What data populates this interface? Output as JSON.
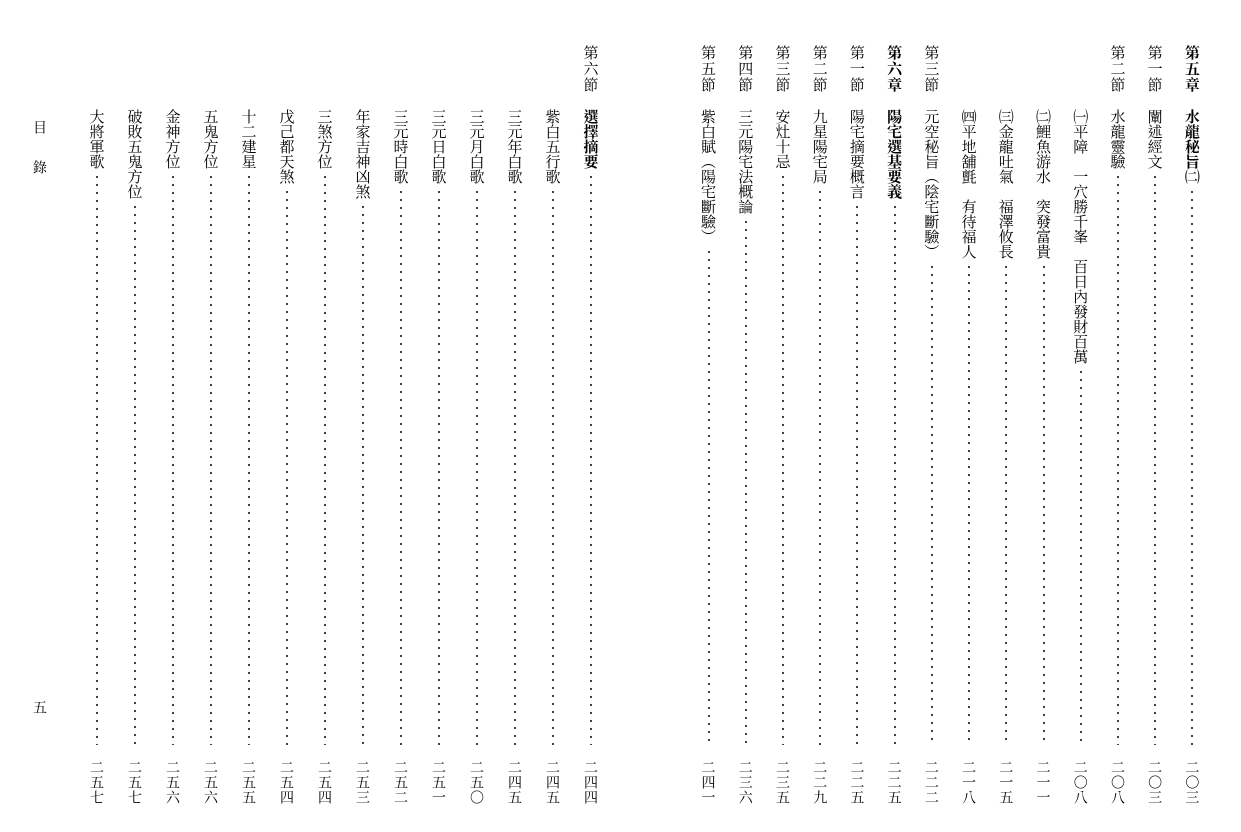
{
  "side_label_top": "目　錄",
  "side_label_bottom": "五",
  "right_page": {
    "entries": [
      {
        "header": "第五章",
        "header_bold": true,
        "title": "水龍秘旨㈡",
        "title_bold": true,
        "page": "二〇三"
      },
      {
        "header": "第一節",
        "title": "闡述經文",
        "page": "二〇三"
      },
      {
        "header": "第二節",
        "title": "水龍靈驗",
        "page": "二〇八"
      },
      {
        "header": "",
        "title": "㈠平障　一穴勝千峯　百日內發財百萬",
        "page": "二〇八"
      },
      {
        "header": "",
        "title": "㈡鯉魚游水　突發富貴",
        "page": "二一一"
      },
      {
        "header": "",
        "title": "㈢金龍吐氣　福澤攸長",
        "page": "二一五"
      },
      {
        "header": "",
        "title": "㈣平地舖氈　有待福人",
        "page": "二一八"
      },
      {
        "header": "第三節",
        "title": "元空秘旨（陰宅斷驗）",
        "page": "二二二"
      },
      {
        "header": "第六章",
        "header_bold": true,
        "title": "陽宅選基要義",
        "title_bold": true,
        "page": "二二五"
      },
      {
        "header": "第一節",
        "title": "陽宅摘要概言",
        "page": "二二五"
      },
      {
        "header": "第二節",
        "title": "九星陽宅局",
        "page": "二二九"
      },
      {
        "header": "第三節",
        "title": "安灶十忌",
        "page": "二三五"
      },
      {
        "header": "第四節",
        "title": "三元陽宅法概論",
        "page": "二三六"
      },
      {
        "header": "第五節",
        "title": "紫白賦（陽宅斷驗）",
        "page": "二四一"
      }
    ]
  },
  "left_page": {
    "entries": [
      {
        "header": "第六節",
        "title": "選擇摘要",
        "title_bold": true,
        "page": "二四四"
      },
      {
        "header": "",
        "title": "紫白五行歌",
        "page": "二四五"
      },
      {
        "header": "",
        "title": "三元年白歌",
        "page": "二四五"
      },
      {
        "header": "",
        "title": "三元月白歌",
        "page": "二五〇"
      },
      {
        "header": "",
        "title": "三元日白歌",
        "page": "二五一"
      },
      {
        "header": "",
        "title": "三元時白歌",
        "page": "二五二"
      },
      {
        "header": "",
        "title": "年家吉神凶煞",
        "page": "二五三"
      },
      {
        "header": "",
        "title": "三煞方位",
        "page": "二五四"
      },
      {
        "header": "",
        "title": "戊己都天煞",
        "page": "二五四"
      },
      {
        "header": "",
        "title": "十二建星",
        "page": "二五五"
      },
      {
        "header": "",
        "title": "五鬼方位",
        "page": "二五六"
      },
      {
        "header": "",
        "title": "金神方位",
        "page": "二五六"
      },
      {
        "header": "",
        "title": "破敗五鬼方位",
        "page": "二五七"
      },
      {
        "header": "",
        "title": "大將軍歌",
        "page": "二五七"
      }
    ]
  }
}
